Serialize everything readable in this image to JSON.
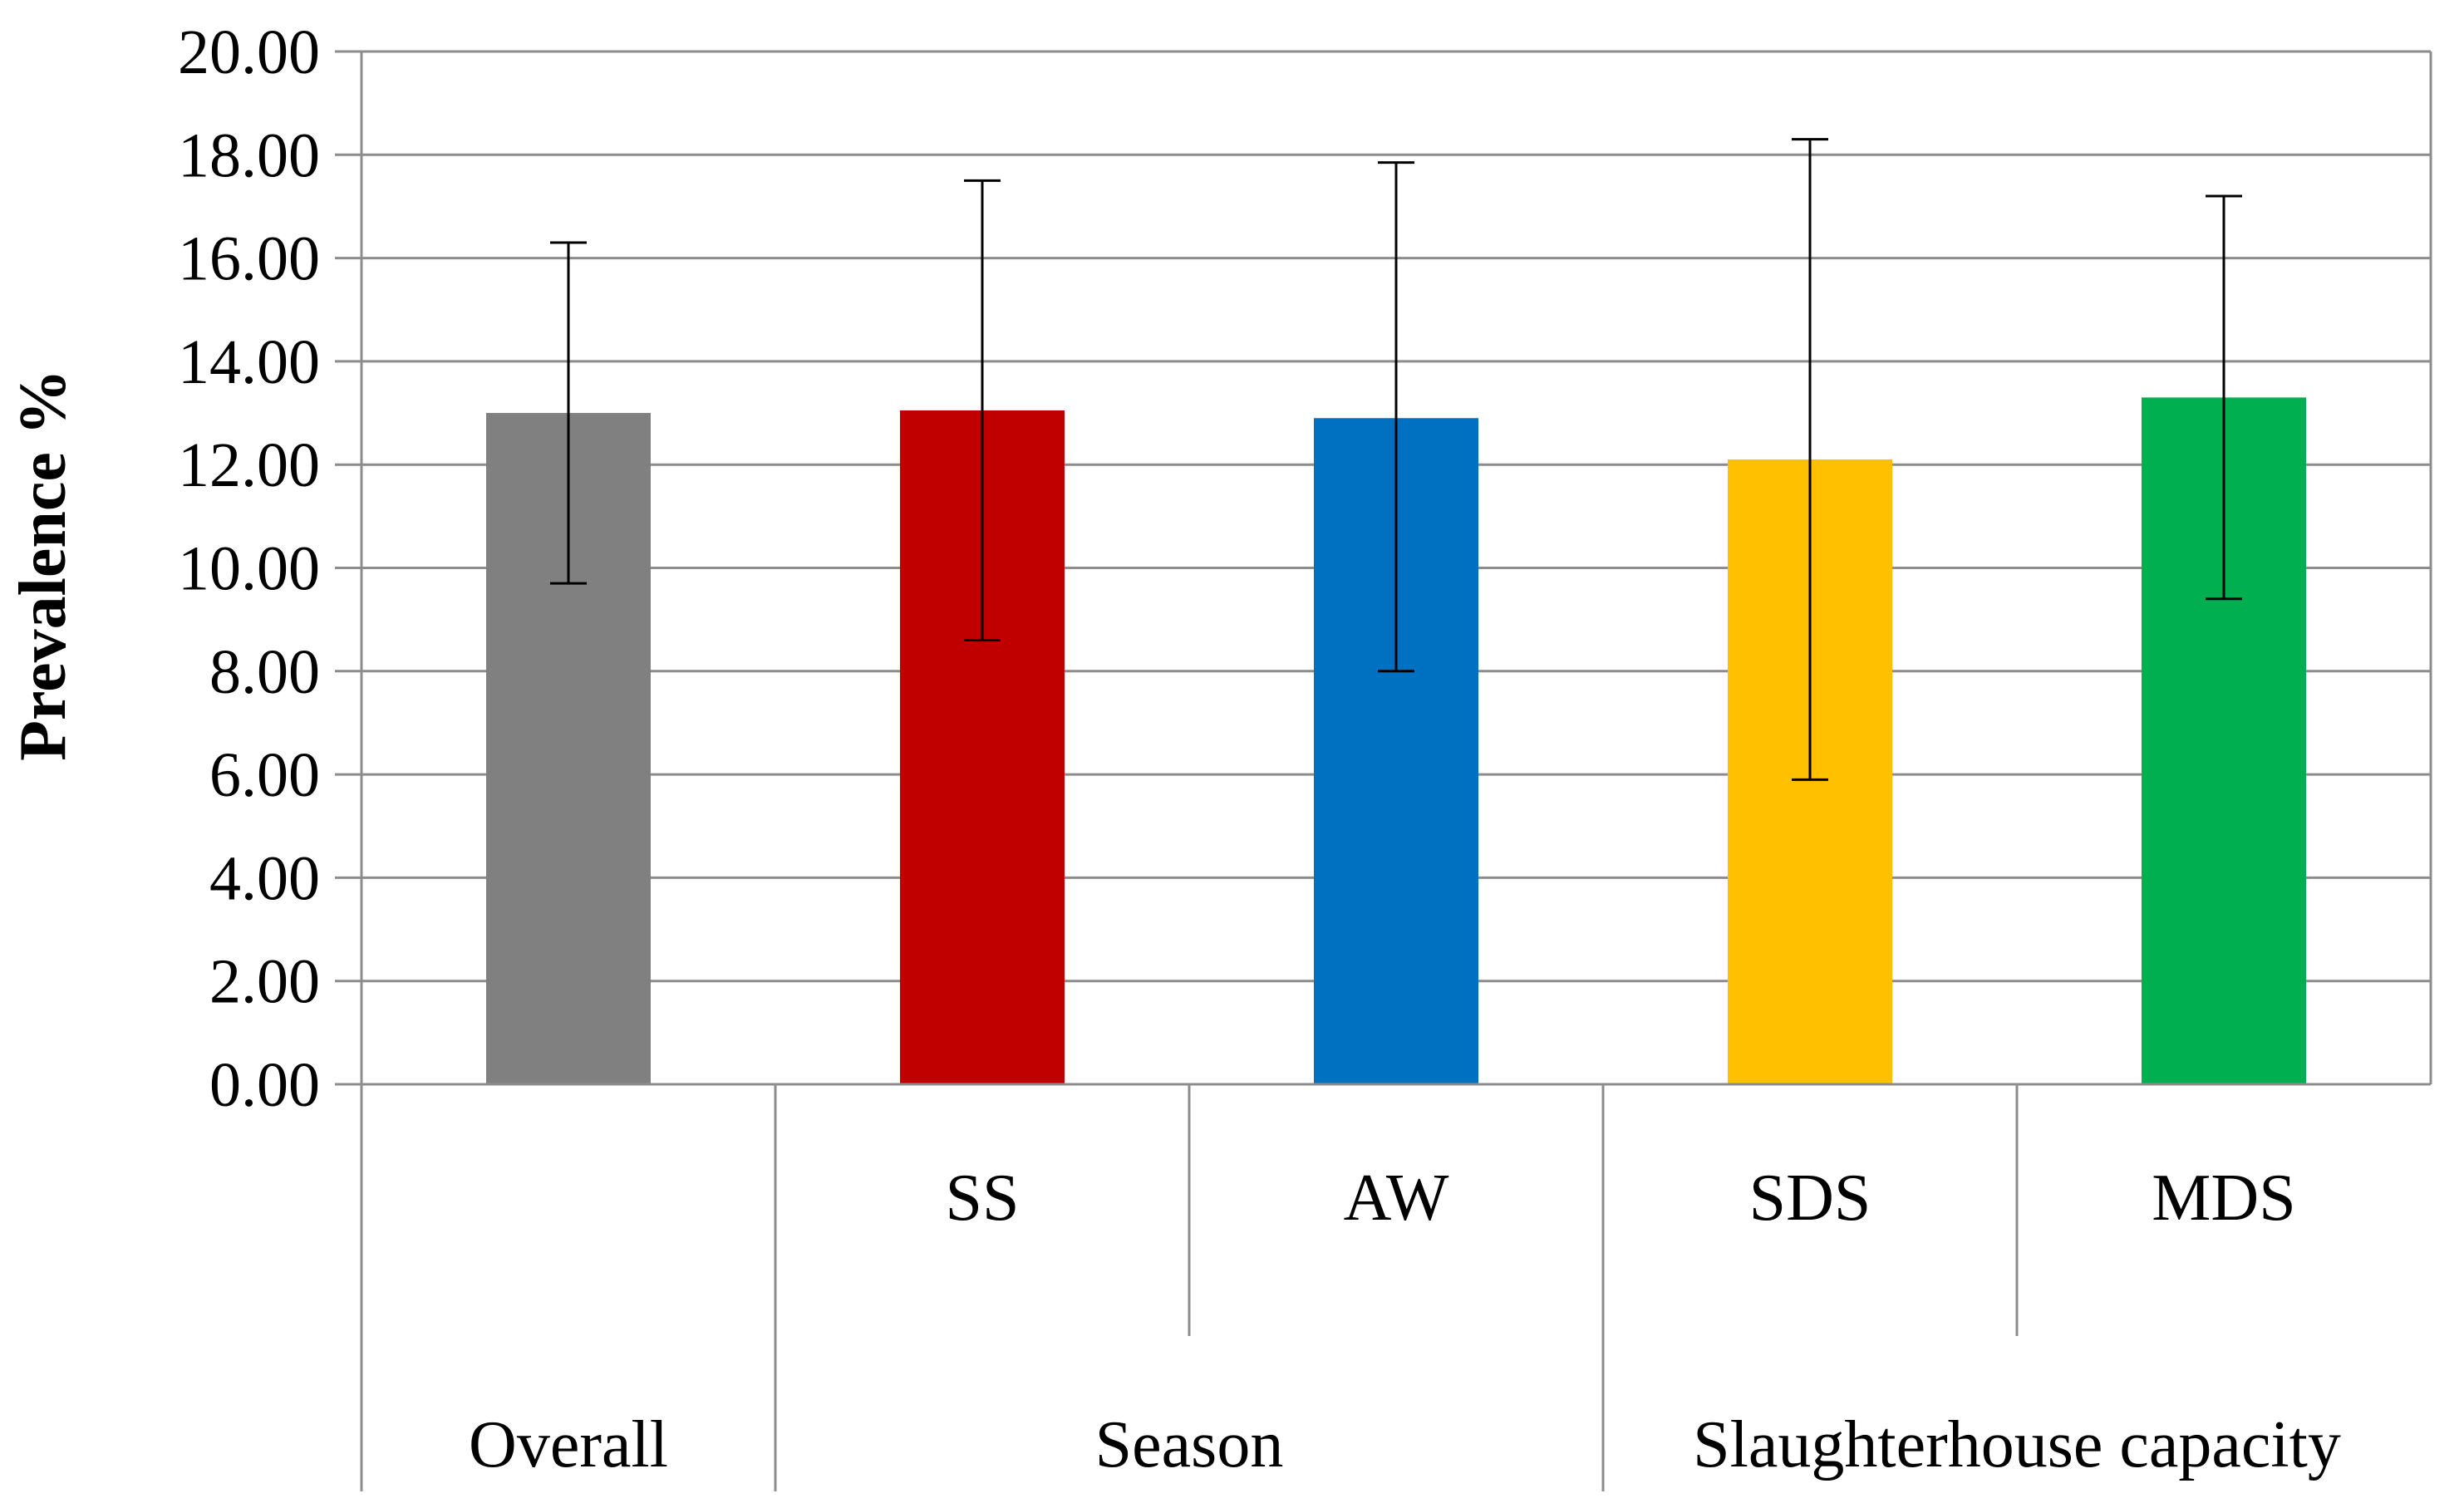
{
  "chart_data": {
    "type": "bar",
    "title": "",
    "xlabel": "",
    "ylabel": "Prevalence %",
    "ylim": [
      0,
      20
    ],
    "ytick_step": 2,
    "ytick_decimals": 2,
    "grid": true,
    "categories": [
      "Overall",
      "SS",
      "AW",
      "SDS",
      "MDS"
    ],
    "values": [
      13.0,
      13.05,
      12.9,
      12.1,
      13.3
    ],
    "error_low": [
      9.7,
      8.6,
      8.0,
      5.9,
      9.4
    ],
    "error_high": [
      16.3,
      17.5,
      17.85,
      18.3,
      17.2
    ],
    "colors": [
      "#808080",
      "#c00000",
      "#0070c0",
      "#ffc000",
      "#00b050"
    ],
    "groups": [
      {
        "label": "Overall",
        "members": [
          0
        ]
      },
      {
        "label": "Season",
        "members": [
          1,
          2
        ]
      },
      {
        "label": "Slaughterhouse capacity",
        "members": [
          3,
          4
        ]
      }
    ],
    "subcategory_labels": [
      "",
      "SS",
      "AW",
      "SDS",
      "MDS"
    ]
  }
}
